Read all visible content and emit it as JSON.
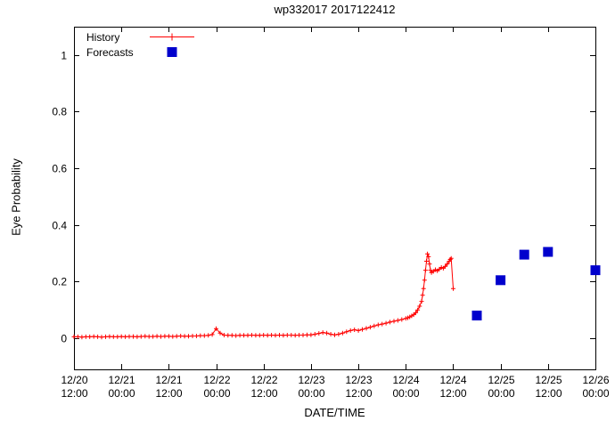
{
  "page": {
    "background": "#ffffff"
  },
  "chart_data": {
    "type": "line",
    "title": "wp332017 2017122412",
    "xlabel": "DATE/TIME",
    "ylabel": "Eye Probability",
    "grid": false,
    "legend_position": "top-left",
    "xlim_hours": [
      0,
      132
    ],
    "xtick_interval_hours": 12,
    "xtick_labels": [
      [
        "12/20",
        "12:00"
      ],
      [
        "12/21",
        "00:00"
      ],
      [
        "12/21",
        "12:00"
      ],
      [
        "12/22",
        "00:00"
      ],
      [
        "12/22",
        "12:00"
      ],
      [
        "12/23",
        "00:00"
      ],
      [
        "12/23",
        "12:00"
      ],
      [
        "12/24",
        "00:00"
      ],
      [
        "12/24",
        "12:00"
      ],
      [
        "12/25",
        "00:00"
      ],
      [
        "12/25",
        "12:00"
      ],
      [
        "12/26",
        "00:00"
      ]
    ],
    "ylim": [
      -0.11,
      1.1
    ],
    "ytick_values": [
      0,
      0.2,
      0.4,
      0.6,
      0.8,
      1
    ],
    "ytick_labels": [
      "0",
      "0.2",
      "0.4",
      "0.6",
      "0.8",
      "1"
    ],
    "series": [
      {
        "name": "History",
        "type": "linespoints",
        "marker": "plus",
        "color": "#ff0000",
        "points": [
          [
            0,
            0.005
          ],
          [
            1,
            0.005
          ],
          [
            2,
            0.004
          ],
          [
            3,
            0.005
          ],
          [
            4,
            0.005
          ],
          [
            5,
            0.006
          ],
          [
            6,
            0.005
          ],
          [
            7,
            0.004
          ],
          [
            8,
            0.005
          ],
          [
            9,
            0.006
          ],
          [
            10,
            0.005
          ],
          [
            11,
            0.005
          ],
          [
            12,
            0.006
          ],
          [
            13,
            0.005
          ],
          [
            14,
            0.006
          ],
          [
            15,
            0.006
          ],
          [
            16,
            0.005
          ],
          [
            17,
            0.006
          ],
          [
            18,
            0.007
          ],
          [
            19,
            0.006
          ],
          [
            20,
            0.006
          ],
          [
            21,
            0.007
          ],
          [
            22,
            0.006
          ],
          [
            23,
            0.007
          ],
          [
            24,
            0.007
          ],
          [
            25,
            0.006
          ],
          [
            26,
            0.007
          ],
          [
            27,
            0.008
          ],
          [
            28,
            0.007
          ],
          [
            29,
            0.007
          ],
          [
            30,
            0.008
          ],
          [
            31,
            0.008
          ],
          [
            32,
            0.009
          ],
          [
            33,
            0.009
          ],
          [
            34,
            0.01
          ],
          [
            35,
            0.013
          ],
          [
            36,
            0.034
          ],
          [
            37,
            0.018
          ],
          [
            38,
            0.011
          ],
          [
            39,
            0.01
          ],
          [
            40,
            0.01
          ],
          [
            41,
            0.009
          ],
          [
            42,
            0.01
          ],
          [
            43,
            0.01
          ],
          [
            44,
            0.01
          ],
          [
            45,
            0.011
          ],
          [
            46,
            0.01
          ],
          [
            47,
            0.01
          ],
          [
            48,
            0.011
          ],
          [
            49,
            0.01
          ],
          [
            50,
            0.011
          ],
          [
            51,
            0.01
          ],
          [
            52,
            0.011
          ],
          [
            53,
            0.01
          ],
          [
            54,
            0.011
          ],
          [
            55,
            0.011
          ],
          [
            56,
            0.01
          ],
          [
            57,
            0.011
          ],
          [
            58,
            0.011
          ],
          [
            59,
            0.012
          ],
          [
            60,
            0.012
          ],
          [
            61,
            0.014
          ],
          [
            62,
            0.017
          ],
          [
            63,
            0.02
          ],
          [
            64,
            0.018
          ],
          [
            65,
            0.014
          ],
          [
            66,
            0.012
          ],
          [
            67,
            0.014
          ],
          [
            68,
            0.018
          ],
          [
            69,
            0.023
          ],
          [
            70,
            0.027
          ],
          [
            71,
            0.03
          ],
          [
            72,
            0.027
          ],
          [
            73,
            0.031
          ],
          [
            74,
            0.035
          ],
          [
            75,
            0.039
          ],
          [
            76,
            0.043
          ],
          [
            77,
            0.047
          ],
          [
            78,
            0.05
          ],
          [
            79,
            0.053
          ],
          [
            80,
            0.057
          ],
          [
            81,
            0.06
          ],
          [
            82,
            0.063
          ],
          [
            83,
            0.066
          ],
          [
            84,
            0.07
          ],
          [
            84.5,
            0.072
          ],
          [
            85,
            0.075
          ],
          [
            85.5,
            0.079
          ],
          [
            86,
            0.083
          ],
          [
            86.5,
            0.09
          ],
          [
            87,
            0.1
          ],
          [
            87.5,
            0.113
          ],
          [
            88,
            0.13
          ],
          [
            88.25,
            0.152
          ],
          [
            88.5,
            0.175
          ],
          [
            88.75,
            0.205
          ],
          [
            89,
            0.24
          ],
          [
            89.25,
            0.272
          ],
          [
            89.5,
            0.298
          ],
          [
            89.75,
            0.288
          ],
          [
            90,
            0.262
          ],
          [
            90.25,
            0.24
          ],
          [
            90.5,
            0.232
          ],
          [
            91,
            0.236
          ],
          [
            91.5,
            0.242
          ],
          [
            92,
            0.238
          ],
          [
            92.5,
            0.244
          ],
          [
            93,
            0.25
          ],
          [
            93.5,
            0.247
          ],
          [
            94,
            0.254
          ],
          [
            94.5,
            0.262
          ],
          [
            95,
            0.272
          ],
          [
            95.25,
            0.278
          ],
          [
            95.5,
            0.282
          ],
          [
            96,
            0.175
          ]
        ]
      },
      {
        "name": "Forecasts",
        "type": "points",
        "marker": "filled-square",
        "color": "#0000cd",
        "points": [
          [
            102,
            0.08
          ],
          [
            108,
            0.205
          ],
          [
            114,
            0.295
          ],
          [
            120,
            0.305
          ],
          [
            132,
            0.24
          ]
        ]
      }
    ]
  }
}
